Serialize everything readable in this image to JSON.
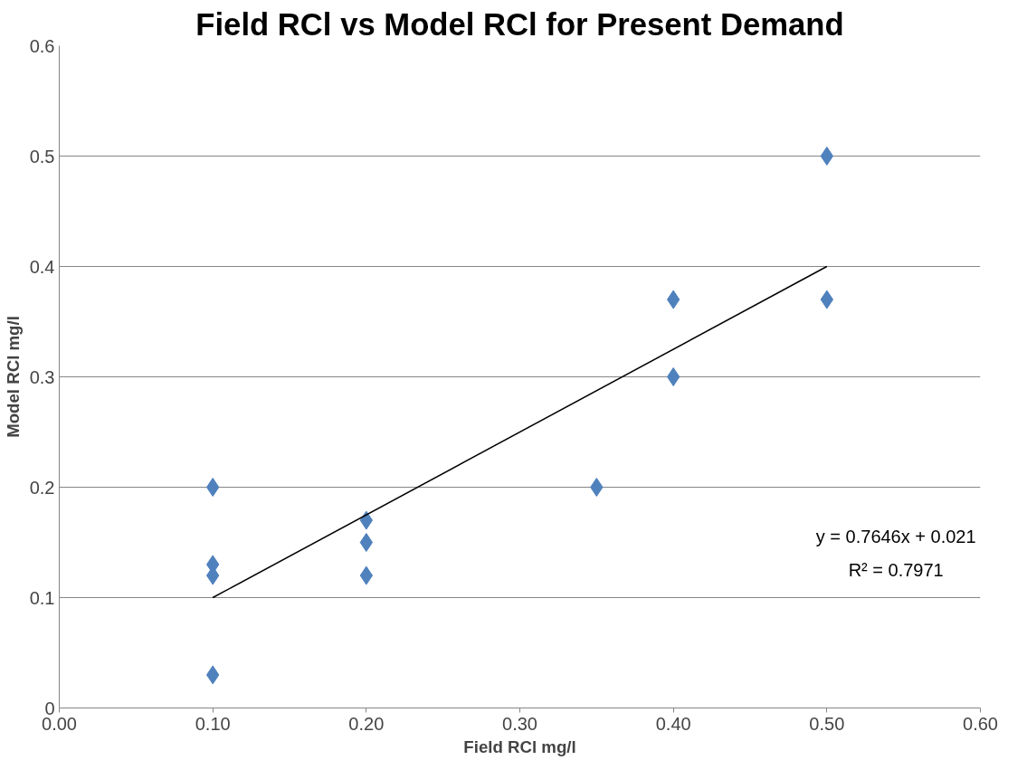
{
  "chart_data": {
    "type": "scatter",
    "title": "Field RCl vs Model RCl for Present Demand",
    "xlabel": "Field RCl mg/l",
    "ylabel": "Model RCl mg/l",
    "xlim": [
      0,
      0.6
    ],
    "ylim": [
      0,
      0.6
    ],
    "xticks": [
      {
        "value": 0,
        "label": "0.00"
      },
      {
        "value": 0.1,
        "label": "0.10"
      },
      {
        "value": 0.2,
        "label": "0.20"
      },
      {
        "value": 0.3,
        "label": "0.30"
      },
      {
        "value": 0.4,
        "label": "0.40"
      },
      {
        "value": 0.5,
        "label": "0.50"
      },
      {
        "value": 0.6,
        "label": "0.60"
      }
    ],
    "yticks": [
      0,
      0.1,
      0.2,
      0.3,
      0.4,
      0.5,
      0.6
    ],
    "grid": "y",
    "marker": "diamond",
    "series": [
      {
        "color": "#4f81bd",
        "x": [
          0.1,
          0.1,
          0.1,
          0.1,
          0.2,
          0.2,
          0.2,
          0.35,
          0.4,
          0.4,
          0.5,
          0.5
        ],
        "values": [
          0.2,
          0.13,
          0.12,
          0.03,
          0.17,
          0.15,
          0.12,
          0.2,
          0.37,
          0.3,
          0.5,
          0.37
        ]
      },
      {
        "type": "line",
        "marker": "none",
        "color": "#000000",
        "x": [
          0.1,
          0.5
        ],
        "values": [
          0.1,
          0.4
        ]
      }
    ],
    "annotations": [
      "y = 0.7646x + 0.021",
      "R² = 0.7971"
    ]
  }
}
